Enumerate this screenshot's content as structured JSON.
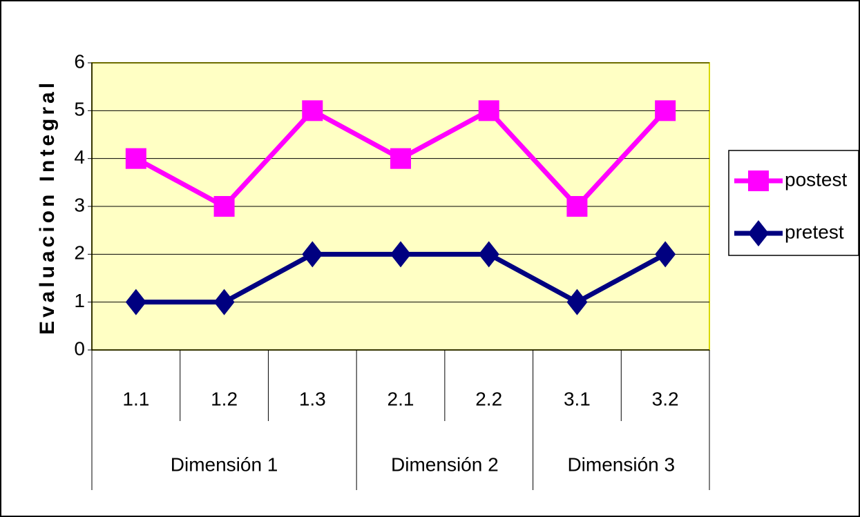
{
  "chart_data": {
    "type": "line",
    "y_label": "Evaluacion Integral",
    "category_groups": [
      {
        "name": "Dimensión 1",
        "categories": [
          "1.1",
          "1.2",
          "1.3"
        ]
      },
      {
        "name": "Dimensión 2",
        "categories": [
          "2.1",
          "2.2"
        ]
      },
      {
        "name": "Dimensión 3",
        "categories": [
          "3.1",
          "3.2"
        ]
      }
    ],
    "series": [
      {
        "name": "postest",
        "color": "#ff00ff",
        "marker": "square",
        "values": [
          4,
          3,
          5,
          4,
          5,
          3,
          5
        ]
      },
      {
        "name": "pretest",
        "color": "#000080",
        "marker": "diamond",
        "values": [
          1,
          1,
          2,
          2,
          2,
          1,
          2
        ]
      }
    ],
    "ylim": [
      0,
      6
    ],
    "yticks": [
      0,
      1,
      2,
      3,
      4,
      5,
      6
    ],
    "grid": true,
    "legend": "right"
  }
}
